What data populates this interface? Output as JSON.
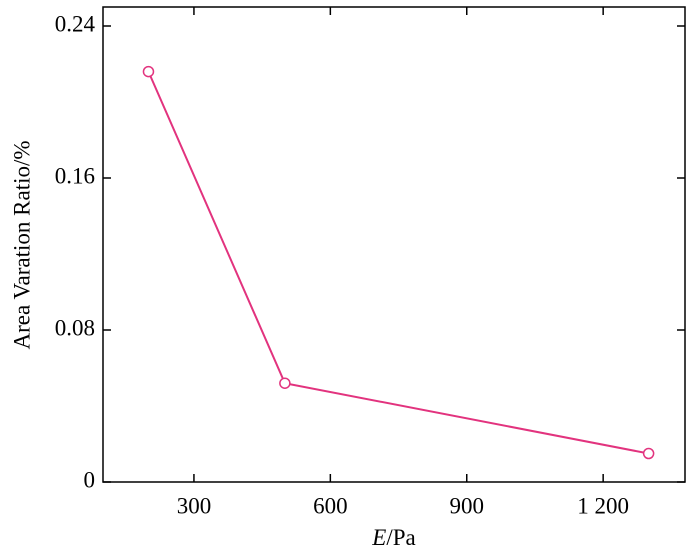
{
  "chart_data": {
    "type": "line",
    "ylabel": "Area Varation Ratio/%",
    "xlabel": [
      "E",
      "/Pa"
    ],
    "x": [
      200,
      500,
      1300
    ],
    "series": [
      {
        "color": "#e2337e",
        "values": [
          0.216,
          0.052,
          0.015
        ]
      }
    ],
    "xlim": [
      100,
      1380
    ],
    "ylim": [
      0,
      0.25
    ],
    "xticks": [
      300,
      600,
      900,
      {
        "value": 1200,
        "label": "1 200"
      }
    ],
    "yticks": [
      0,
      0.08,
      0.16,
      0.24
    ]
  }
}
